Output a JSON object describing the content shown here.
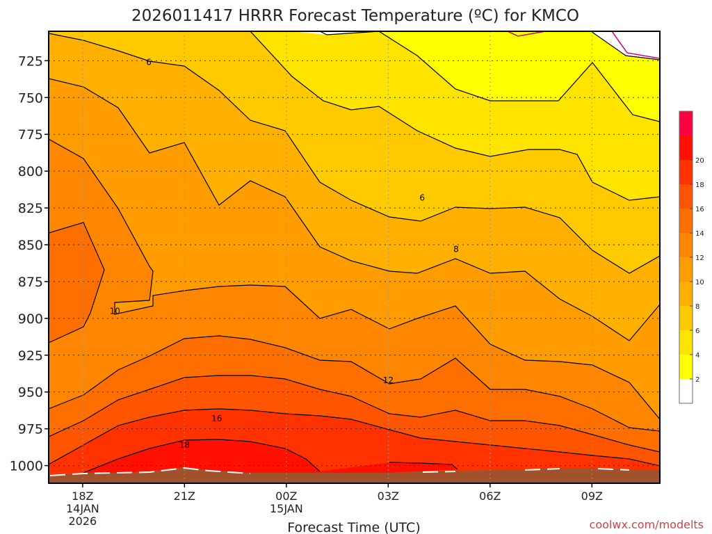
{
  "chart_data": {
    "type": "contour",
    "title": "2026011417 HRRR Forecast Temperature (ºC) for KMCO",
    "xlabel": "Forecast Time (UTC)",
    "ylabel": "",
    "credit": "coolwx.com/modelts",
    "y_ticks": [
      {
        "value": 725,
        "label": "725"
      },
      {
        "value": 750,
        "label": "750"
      },
      {
        "value": 775,
        "label": "775"
      },
      {
        "value": 800,
        "label": "800"
      },
      {
        "value": 825,
        "label": "825"
      },
      {
        "value": 850,
        "label": "850"
      },
      {
        "value": 875,
        "label": "875"
      },
      {
        "value": 900,
        "label": "900"
      },
      {
        "value": 925,
        "label": "925"
      },
      {
        "value": 950,
        "label": "950"
      },
      {
        "value": 975,
        "label": "975"
      },
      {
        "value": 1000,
        "label": "1000"
      }
    ],
    "ylim": [
      705,
      1012
    ],
    "x_ticks": [
      {
        "hour": 18,
        "lines": [
          "18Z",
          "14JAN",
          "2026"
        ]
      },
      {
        "hour": 21,
        "lines": [
          "21Z"
        ]
      },
      {
        "hour": 24,
        "lines": [
          "00Z",
          "15JAN"
        ]
      },
      {
        "hour": 27,
        "lines": [
          "03Z"
        ]
      },
      {
        "hour": 30,
        "lines": [
          "06Z"
        ]
      },
      {
        "hour": 33,
        "lines": [
          "09Z"
        ]
      }
    ],
    "xlim": [
      17.0,
      35.0
    ],
    "contour_labels": [
      {
        "text": "6",
        "hour": 19.95,
        "p": 726
      },
      {
        "text": "6",
        "hour": 28.0,
        "p": 818
      },
      {
        "text": "8",
        "hour": 29.0,
        "p": 853
      },
      {
        "text": "10",
        "hour": 18.95,
        "p": 895
      },
      {
        "text": "12",
        "hour": 27.0,
        "p": 942
      },
      {
        "text": "16",
        "hour": 21.95,
        "p": 968
      },
      {
        "text": "18",
        "hour": 21.0,
        "p": 986
      }
    ],
    "colorbar": {
      "levels": [
        2,
        4,
        6,
        8,
        10,
        12,
        14,
        16,
        18,
        20
      ],
      "labels": [
        "2",
        "4",
        "6",
        "8",
        "10",
        "12",
        "14",
        "16",
        "18",
        "20"
      ],
      "colors": [
        "#ffffff",
        "#ffff00",
        "#ffe400",
        "#ffcb00",
        "#ffb000",
        "#ff9c00",
        "#ff8600",
        "#ff6f00",
        "#ff5500",
        "#ff3200",
        "#ff1000",
        "#ff0040"
      ]
    }
  }
}
